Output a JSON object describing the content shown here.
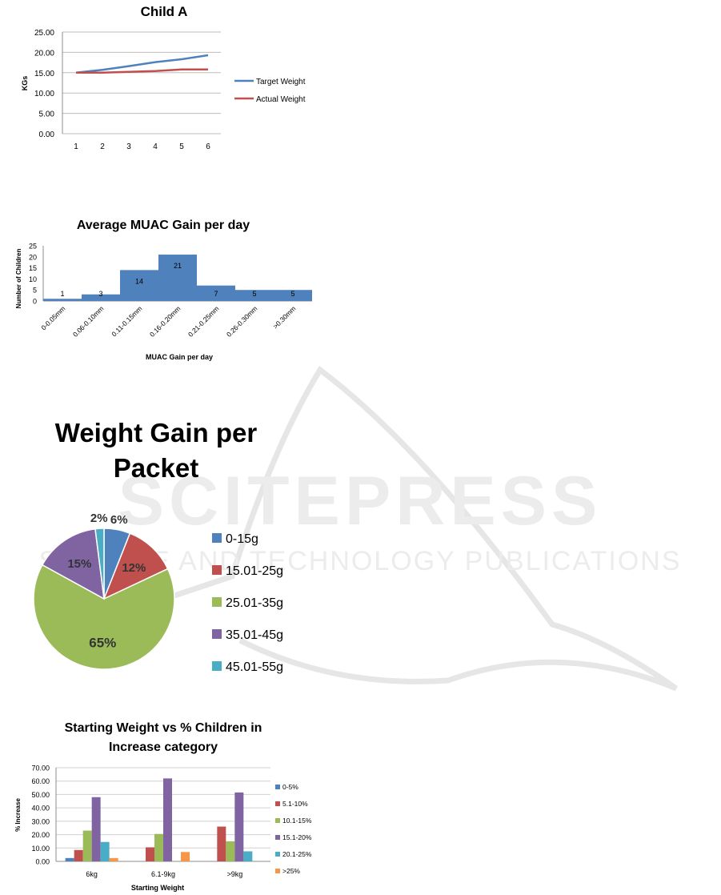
{
  "watermark": {
    "main": "SCITEPRESS",
    "sub": "SCIENCE AND TECHNOLOGY PUBLICATIONS"
  },
  "chart_data": [
    {
      "type": "line",
      "title": "Child A",
      "ylabel": "KGs",
      "xlabel": "",
      "x": [
        1,
        2,
        3,
        4,
        5,
        6
      ],
      "ylim": [
        0,
        25
      ],
      "yticks": [
        "0.00",
        "5.00",
        "10.00",
        "15.00",
        "20.00",
        "25.00"
      ],
      "legend_position": "right",
      "series": [
        {
          "name": "Target Weight",
          "color": "#4f81bd",
          "values": [
            15.0,
            15.7,
            16.6,
            17.6,
            18.3,
            19.3
          ]
        },
        {
          "name": "Actual Weight",
          "color": "#c0504d",
          "values": [
            15.0,
            15.0,
            15.2,
            15.4,
            15.8,
            15.8
          ]
        }
      ]
    },
    {
      "type": "bar",
      "title": "Average MUAC Gain per day",
      "xlabel": "MUAC Gain per day",
      "ylabel": "Number of Children",
      "ylim": [
        0,
        25
      ],
      "yticks": [
        "0",
        "5",
        "10",
        "15",
        "20",
        "25"
      ],
      "color": "#4f81bd",
      "categories": [
        "0-0.05mm",
        "0.06-0.10mm",
        "0.11-0.15mm",
        "0.16-0.20mm",
        "0.21-0.25mm",
        "0.26-0.30mm",
        ">0.30mm"
      ],
      "values": [
        1,
        3,
        14,
        21,
        7,
        5,
        5
      ]
    },
    {
      "type": "pie",
      "title": "Weight Gain per Packet",
      "legend_position": "right",
      "slices": [
        {
          "label": "0-15g",
          "value": 6,
          "text": "6%",
          "color": "#4f81bd"
        },
        {
          "label": "15.01-25g",
          "value": 12,
          "text": "12%",
          "color": "#c0504d"
        },
        {
          "label": "25.01-35g",
          "value": 65,
          "text": "65%",
          "color": "#9bbb59"
        },
        {
          "label": "35.01-45g",
          "value": 15,
          "text": "15%",
          "color": "#8064a2"
        },
        {
          "label": "45.01-55g",
          "value": 2,
          "text": "2%",
          "color": "#4bacc6"
        }
      ]
    },
    {
      "type": "bar",
      "title": "Starting Weight vs % Children in Increase category",
      "title_lines": [
        "Starting Weight vs % Children in",
        "Increase category"
      ],
      "xlabel": "Starting Weight",
      "ylabel": "% Increase",
      "ylim": [
        0,
        70
      ],
      "yticks": [
        "0.00",
        "10.00",
        "20.00",
        "30.00",
        "40.00",
        "50.00",
        "60.00",
        "70.00"
      ],
      "legend_position": "right",
      "categories": [
        "6kg",
        "6.1-9kg",
        ">9kg"
      ],
      "series": [
        {
          "name": "0-5%",
          "color": "#4f81bd",
          "values": [
            2.5,
            0,
            0
          ]
        },
        {
          "name": "5.1-10%",
          "color": "#c0504d",
          "values": [
            8.5,
            10.5,
            26
          ]
        },
        {
          "name": "10.1-15%",
          "color": "#9bbb59",
          "values": [
            23,
            20.5,
            15
          ]
        },
        {
          "name": "15.1-20%",
          "color": "#8064a2",
          "values": [
            48,
            62,
            51.5
          ]
        },
        {
          "name": "20.1-25%",
          "color": "#4bacc6",
          "values": [
            14.5,
            0,
            7.5
          ]
        },
        {
          "name": ">25%",
          "color": "#f79646",
          "values": [
            2.5,
            7,
            0
          ]
        }
      ]
    }
  ]
}
